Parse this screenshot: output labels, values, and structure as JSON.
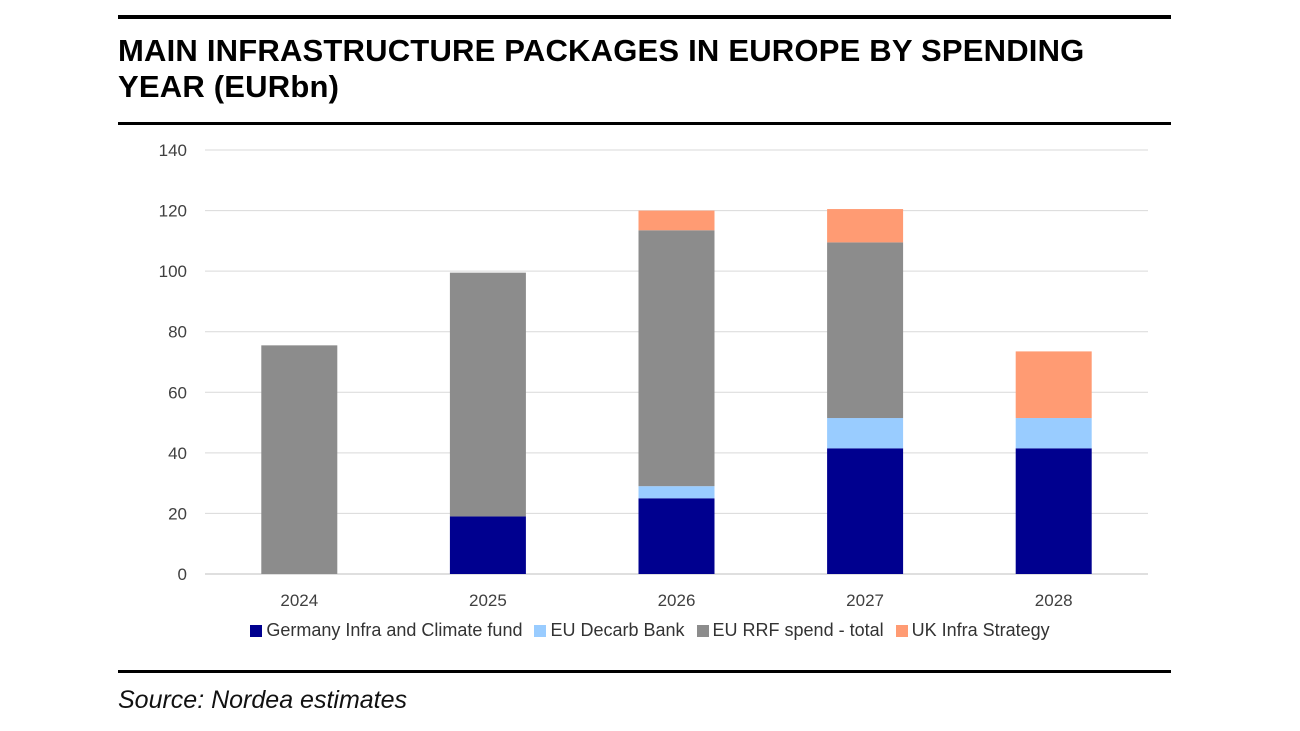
{
  "title": "MAIN INFRASTRUCTURE PACKAGES IN EUROPE BY SPENDING YEAR (EURbn)",
  "source": "Source: Nordea estimates",
  "chart_data": {
    "type": "bar",
    "stacked": true,
    "categories": [
      "2024",
      "2025",
      "2026",
      "2027",
      "2028"
    ],
    "series": [
      {
        "name": "Germany Infra and Climate fund",
        "color": "#00008f",
        "values": [
          0,
          19,
          25,
          41.5,
          41.5
        ]
      },
      {
        "name": "EU Decarb Bank",
        "color": "#99ccff",
        "values": [
          0,
          0,
          4,
          10,
          10
        ]
      },
      {
        "name": "EU RRF spend - total",
        "color": "#8c8c8c",
        "values": [
          75.5,
          80.5,
          84.5,
          58,
          0
        ]
      },
      {
        "name": "UK Infra Strategy",
        "color": "#ff9b73",
        "values": [
          0,
          0,
          6.5,
          11,
          22
        ]
      }
    ],
    "ylim": [
      0,
      140
    ],
    "yticks": [
      0,
      20,
      40,
      60,
      80,
      100,
      120,
      140
    ],
    "grid": true,
    "legend": "bottom"
  }
}
